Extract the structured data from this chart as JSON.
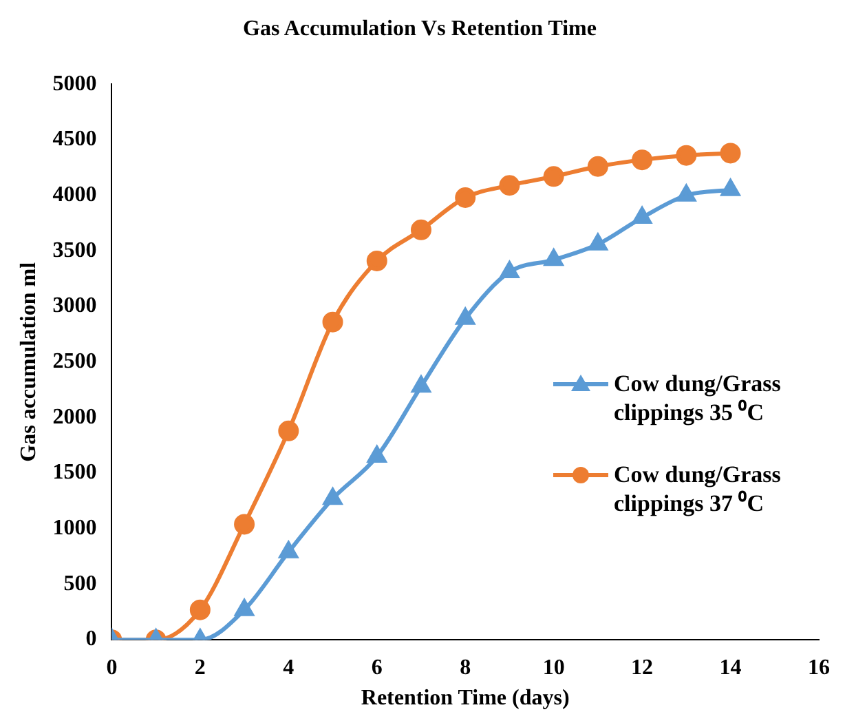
{
  "chart_data": {
    "type": "line",
    "title": "Gas Accumulation Vs Retention Time",
    "xlabel": "Retention Time (days)",
    "ylabel": "Gas accumulation ml",
    "x": [
      0,
      1,
      2,
      3,
      4,
      5,
      6,
      7,
      8,
      9,
      10,
      11,
      12,
      13,
      14
    ],
    "series": [
      {
        "name": "Cow dung/Grass clippings 35 ⁰C",
        "color": "#5b9bd5",
        "marker": "triangle",
        "values": [
          0,
          0,
          0,
          270,
          790,
          1270,
          1650,
          2280,
          2890,
          3310,
          3420,
          3560,
          3800,
          4000,
          4050
        ]
      },
      {
        "name": "Cow dung/Grass clippings 37 ⁰C",
        "color": "#ed7d31",
        "marker": "circle",
        "values": [
          0,
          0,
          270,
          1040,
          1880,
          2860,
          3410,
          3690,
          3980,
          4090,
          4170,
          4260,
          4320,
          4360,
          4380
        ]
      }
    ],
    "xlim": [
      0,
      16
    ],
    "xticks": [
      0,
      2,
      4,
      6,
      8,
      10,
      12,
      14,
      16
    ],
    "ylim": [
      0,
      5000
    ],
    "yticks": [
      0,
      500,
      1000,
      1500,
      2000,
      2500,
      3000,
      3500,
      4000,
      4500,
      5000
    ],
    "grid": false,
    "legend": "right"
  }
}
